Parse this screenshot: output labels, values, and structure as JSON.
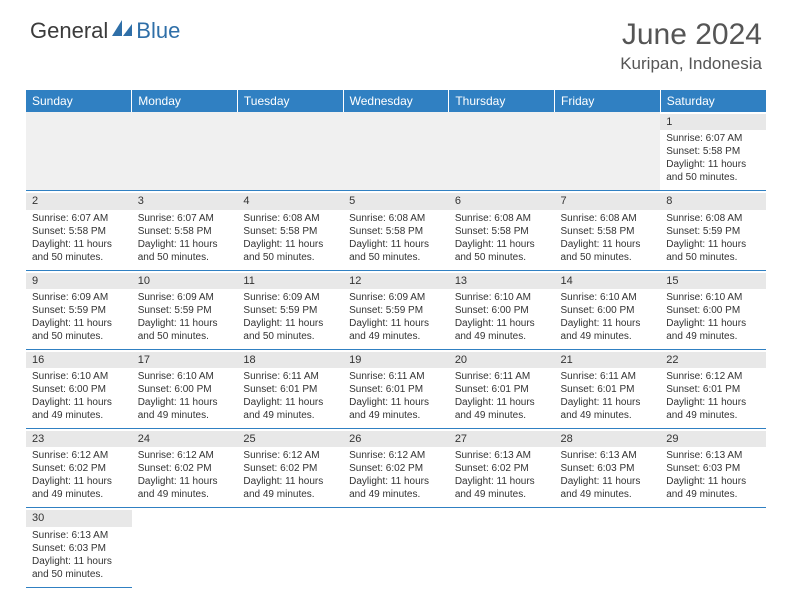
{
  "logo": {
    "text1": "General",
    "text2": "Blue"
  },
  "title": "June 2024",
  "location": "Kuripan, Indonesia",
  "colors": {
    "header_bg": "#3080c2",
    "header_text": "#ffffff",
    "daynum_bg": "#e8e8e8",
    "border": "#3080c2",
    "text": "#333333"
  },
  "day_headers": [
    "Sunday",
    "Monday",
    "Tuesday",
    "Wednesday",
    "Thursday",
    "Friday",
    "Saturday"
  ],
  "weeks": [
    [
      null,
      null,
      null,
      null,
      null,
      null,
      {
        "n": "1",
        "sr": "6:07 AM",
        "ss": "5:58 PM",
        "dl": "11 hours and 50 minutes."
      }
    ],
    [
      {
        "n": "2",
        "sr": "6:07 AM",
        "ss": "5:58 PM",
        "dl": "11 hours and 50 minutes."
      },
      {
        "n": "3",
        "sr": "6:07 AM",
        "ss": "5:58 PM",
        "dl": "11 hours and 50 minutes."
      },
      {
        "n": "4",
        "sr": "6:08 AM",
        "ss": "5:58 PM",
        "dl": "11 hours and 50 minutes."
      },
      {
        "n": "5",
        "sr": "6:08 AM",
        "ss": "5:58 PM",
        "dl": "11 hours and 50 minutes."
      },
      {
        "n": "6",
        "sr": "6:08 AM",
        "ss": "5:58 PM",
        "dl": "11 hours and 50 minutes."
      },
      {
        "n": "7",
        "sr": "6:08 AM",
        "ss": "5:58 PM",
        "dl": "11 hours and 50 minutes."
      },
      {
        "n": "8",
        "sr": "6:08 AM",
        "ss": "5:59 PM",
        "dl": "11 hours and 50 minutes."
      }
    ],
    [
      {
        "n": "9",
        "sr": "6:09 AM",
        "ss": "5:59 PM",
        "dl": "11 hours and 50 minutes."
      },
      {
        "n": "10",
        "sr": "6:09 AM",
        "ss": "5:59 PM",
        "dl": "11 hours and 50 minutes."
      },
      {
        "n": "11",
        "sr": "6:09 AM",
        "ss": "5:59 PM",
        "dl": "11 hours and 50 minutes."
      },
      {
        "n": "12",
        "sr": "6:09 AM",
        "ss": "5:59 PM",
        "dl": "11 hours and 49 minutes."
      },
      {
        "n": "13",
        "sr": "6:10 AM",
        "ss": "6:00 PM",
        "dl": "11 hours and 49 minutes."
      },
      {
        "n": "14",
        "sr": "6:10 AM",
        "ss": "6:00 PM",
        "dl": "11 hours and 49 minutes."
      },
      {
        "n": "15",
        "sr": "6:10 AM",
        "ss": "6:00 PM",
        "dl": "11 hours and 49 minutes."
      }
    ],
    [
      {
        "n": "16",
        "sr": "6:10 AM",
        "ss": "6:00 PM",
        "dl": "11 hours and 49 minutes."
      },
      {
        "n": "17",
        "sr": "6:10 AM",
        "ss": "6:00 PM",
        "dl": "11 hours and 49 minutes."
      },
      {
        "n": "18",
        "sr": "6:11 AM",
        "ss": "6:01 PM",
        "dl": "11 hours and 49 minutes."
      },
      {
        "n": "19",
        "sr": "6:11 AM",
        "ss": "6:01 PM",
        "dl": "11 hours and 49 minutes."
      },
      {
        "n": "20",
        "sr": "6:11 AM",
        "ss": "6:01 PM",
        "dl": "11 hours and 49 minutes."
      },
      {
        "n": "21",
        "sr": "6:11 AM",
        "ss": "6:01 PM",
        "dl": "11 hours and 49 minutes."
      },
      {
        "n": "22",
        "sr": "6:12 AM",
        "ss": "6:01 PM",
        "dl": "11 hours and 49 minutes."
      }
    ],
    [
      {
        "n": "23",
        "sr": "6:12 AM",
        "ss": "6:02 PM",
        "dl": "11 hours and 49 minutes."
      },
      {
        "n": "24",
        "sr": "6:12 AM",
        "ss": "6:02 PM",
        "dl": "11 hours and 49 minutes."
      },
      {
        "n": "25",
        "sr": "6:12 AM",
        "ss": "6:02 PM",
        "dl": "11 hours and 49 minutes."
      },
      {
        "n": "26",
        "sr": "6:12 AM",
        "ss": "6:02 PM",
        "dl": "11 hours and 49 minutes."
      },
      {
        "n": "27",
        "sr": "6:13 AM",
        "ss": "6:02 PM",
        "dl": "11 hours and 49 minutes."
      },
      {
        "n": "28",
        "sr": "6:13 AM",
        "ss": "6:03 PM",
        "dl": "11 hours and 49 minutes."
      },
      {
        "n": "29",
        "sr": "6:13 AM",
        "ss": "6:03 PM",
        "dl": "11 hours and 49 minutes."
      }
    ],
    [
      {
        "n": "30",
        "sr": "6:13 AM",
        "ss": "6:03 PM",
        "dl": "11 hours and 50 minutes."
      },
      null,
      null,
      null,
      null,
      null,
      null
    ]
  ],
  "labels": {
    "sunrise": "Sunrise:",
    "sunset": "Sunset:",
    "daylight": "Daylight:"
  }
}
